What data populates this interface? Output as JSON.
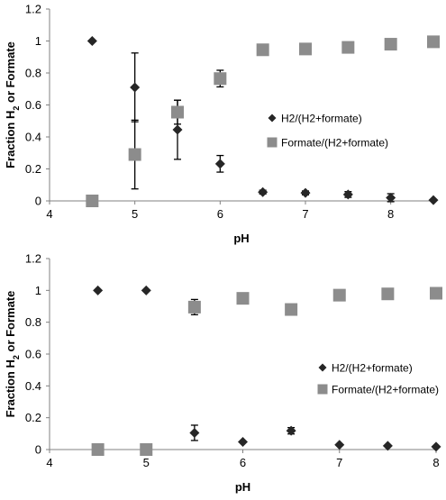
{
  "chart_data": [
    {
      "type": "scatter",
      "title": "",
      "xlabel": "pH",
      "ylabel": "Fraction H2 or Formate",
      "xlim": [
        4,
        8.5
      ],
      "ylim": [
        0,
        1.2
      ],
      "x_ticks": [
        "4",
        "5",
        "6",
        "7",
        "8"
      ],
      "y_ticks": [
        "0",
        "0.2",
        "0.4",
        "0.6",
        "0.8",
        "1",
        "1.2"
      ],
      "grid": false,
      "legend_position": "right",
      "series": [
        {
          "name": "H2/(H2+formate)",
          "marker": "diamond",
          "color": "#262626",
          "points": [
            {
              "x": 4.5,
              "y": 1.0
            },
            {
              "x": 5.0,
              "y": 0.71,
              "err": 0.215
            },
            {
              "x": 5.5,
              "y": 0.445,
              "err": 0.185
            },
            {
              "x": 6.0,
              "y": 0.232,
              "err": 0.052
            },
            {
              "x": 6.5,
              "y": 0.055,
              "err": 0.012
            },
            {
              "x": 7.0,
              "y": 0.05,
              "err": 0.012
            },
            {
              "x": 7.5,
              "y": 0.04,
              "err": 0.018
            },
            {
              "x": 8.0,
              "y": 0.02,
              "err": 0.025
            },
            {
              "x": 8.5,
              "y": 0.005
            }
          ]
        },
        {
          "name": "Formate/(H2+formate)",
          "marker": "square",
          "color": "#8c8c8c",
          "points": [
            {
              "x": 4.5,
              "y": 0.0
            },
            {
              "x": 5.0,
              "y": 0.29,
              "err": 0.215
            },
            {
              "x": 5.5,
              "y": 0.555,
              "err": 0.075
            },
            {
              "x": 6.0,
              "y": 0.765,
              "err": 0.052
            },
            {
              "x": 6.5,
              "y": 0.945
            },
            {
              "x": 7.0,
              "y": 0.95
            },
            {
              "x": 7.5,
              "y": 0.96
            },
            {
              "x": 8.0,
              "y": 0.98
            },
            {
              "x": 8.5,
              "y": 0.995
            }
          ]
        }
      ]
    },
    {
      "type": "scatter",
      "title": "",
      "xlabel": "pH",
      "ylabel": "Fraction H2 or Formate",
      "xlim": [
        4,
        8
      ],
      "ylim": [
        0,
        1.2
      ],
      "x_ticks": [
        "4",
        "5",
        "6",
        "7",
        "8"
      ],
      "y_ticks": [
        "0",
        "0.2",
        "0.4",
        "0.6",
        "0.8",
        "1",
        "1.2"
      ],
      "grid": false,
      "legend_position": "right",
      "series": [
        {
          "name": "H2/(H2+formate)",
          "marker": "diamond",
          "color": "#262626",
          "points": [
            {
              "x": 4.5,
              "y": 1.0
            },
            {
              "x": 5.0,
              "y": 1.0
            },
            {
              "x": 5.5,
              "y": 0.105,
              "err": 0.048
            },
            {
              "x": 6.0,
              "y": 0.048
            },
            {
              "x": 6.5,
              "y": 0.118,
              "err": 0.02
            },
            {
              "x": 7.0,
              "y": 0.03
            },
            {
              "x": 7.5,
              "y": 0.023
            },
            {
              "x": 8.0,
              "y": 0.018
            }
          ]
        },
        {
          "name": "Formate/(H2+formate)",
          "marker": "square",
          "color": "#8c8c8c",
          "points": [
            {
              "x": 4.5,
              "y": 0.0
            },
            {
              "x": 5.0,
              "y": 0.0
            },
            {
              "x": 5.5,
              "y": 0.895,
              "err": 0.048
            },
            {
              "x": 6.0,
              "y": 0.95
            },
            {
              "x": 6.5,
              "y": 0.88
            },
            {
              "x": 7.0,
              "y": 0.97
            },
            {
              "x": 7.5,
              "y": 0.978
            },
            {
              "x": 8.0,
              "y": 0.982
            }
          ]
        }
      ]
    }
  ]
}
